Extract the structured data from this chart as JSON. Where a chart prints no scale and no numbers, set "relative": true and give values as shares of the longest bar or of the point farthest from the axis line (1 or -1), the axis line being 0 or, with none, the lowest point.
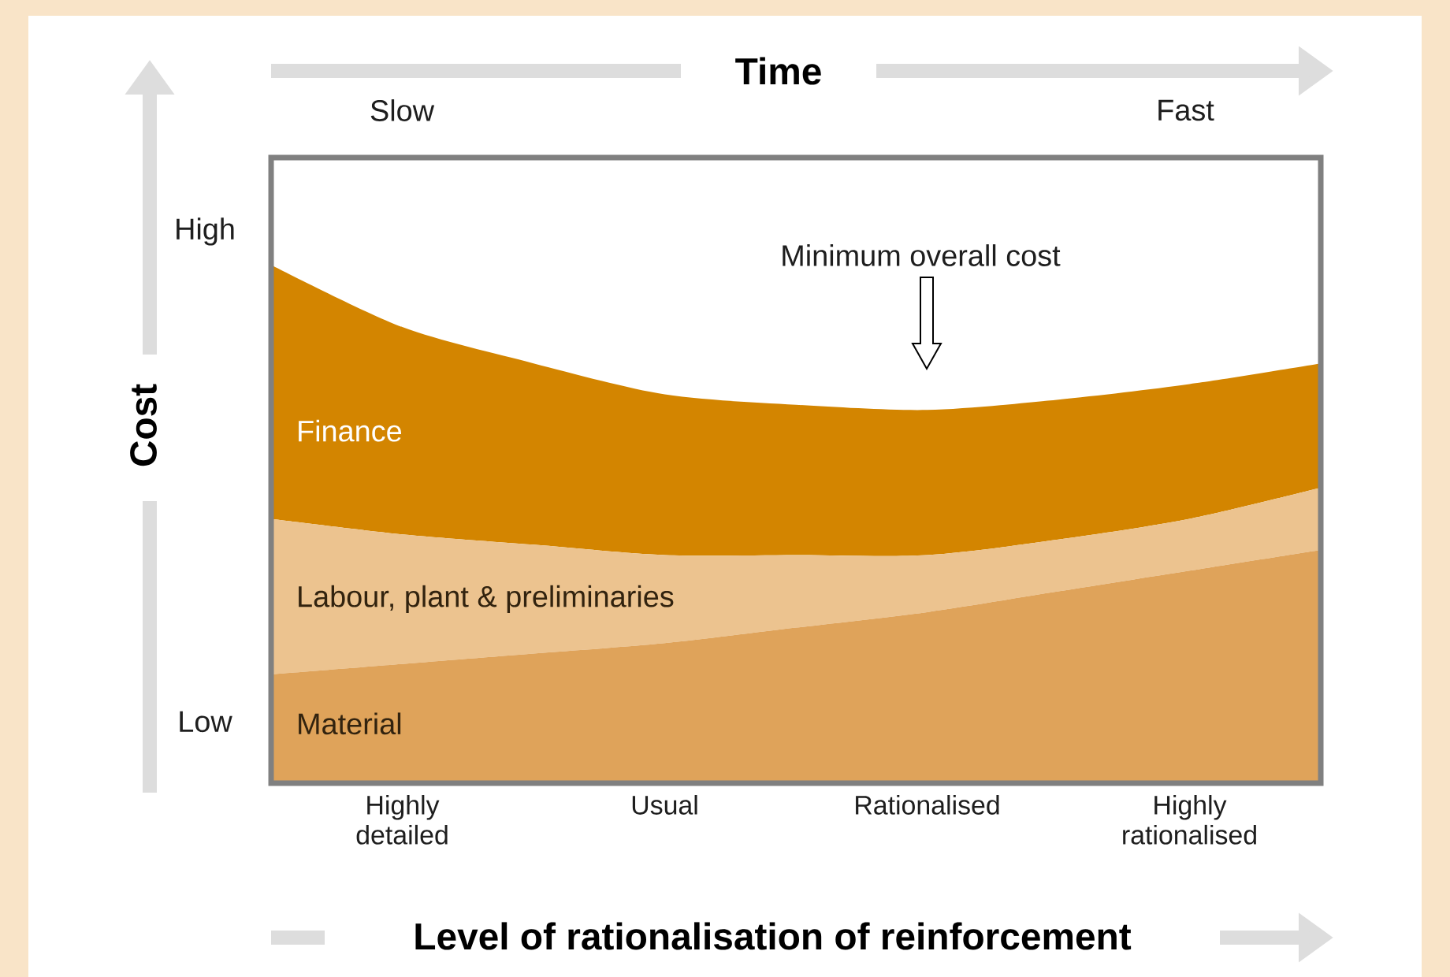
{
  "chart_data": {
    "type": "area",
    "title": null,
    "x2label": "Time",
    "xlabel": "Level of rationalisation of reinforcement",
    "ylabel": "Cost",
    "relative": true,
    "stacked": true,
    "categories": [
      null,
      "Highly detailed",
      null,
      "Usual",
      null,
      "Rationalised",
      null,
      "Highly rationalised",
      null
    ],
    "series": [
      {
        "name": "Material",
        "color": "#dfa35a",
        "values": [
          0.21,
          0.23,
          0.25,
          0.27,
          0.3,
          0.33,
          0.37,
          0.41,
          0.45
        ]
      },
      {
        "name": "Labour, plant & preliminaries",
        "color": "#ecc38f",
        "values": [
          0.3,
          0.25,
          0.21,
          0.17,
          0.14,
          0.11,
          0.1,
          0.1,
          0.12
        ]
      },
      {
        "name": "Finance",
        "color": "#d38500",
        "values": [
          0.49,
          0.4,
          0.35,
          0.31,
          0.29,
          0.28,
          0.27,
          0.26,
          0.24
        ]
      }
    ],
    "annotations": [
      "Slow",
      "Fast",
      "High",
      "Low",
      "Minimum overall cost"
    ]
  }
}
